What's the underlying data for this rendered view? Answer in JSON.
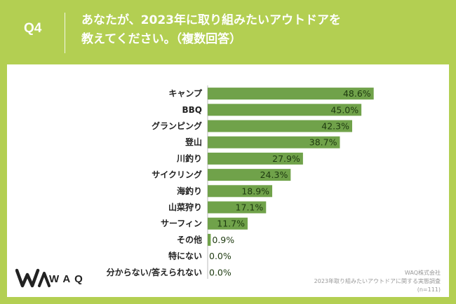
{
  "header": {
    "q_label": "Q4",
    "question_line1": "あなたが、2023年に取り組みたいアウトドアを",
    "question_line2": "教えてください。（複数回答）"
  },
  "chart_data": {
    "type": "bar",
    "orientation": "horizontal",
    "categories": [
      "キャンプ",
      "BBQ",
      "グランピング",
      "登山",
      "川釣り",
      "サイクリング",
      "海釣り",
      "山菜狩り",
      "サーフィン",
      "その他",
      "特にない",
      "分からない/答えられない"
    ],
    "values": [
      48.6,
      45.0,
      42.3,
      38.7,
      27.9,
      24.3,
      18.9,
      17.1,
      11.7,
      0.9,
      0.0,
      0.0
    ],
    "value_labels": [
      "48.6%",
      "45.0%",
      "42.3%",
      "38.7%",
      "27.9%",
      "24.3%",
      "18.9%",
      "17.1%",
      "11.7%",
      "0.9%",
      "0.0%",
      "0.0%"
    ],
    "unit": "%",
    "xlim": [
      0,
      55
    ],
    "bar_color": "#70a24a",
    "grid": false
  },
  "logo": {
    "text": "WAQ"
  },
  "source": {
    "company": "WAQ株式会社",
    "survey": "2023年取り組みたいアウトドアに関する実態調査",
    "n": "(n=111)"
  },
  "colors": {
    "background": "#b3cf52",
    "bar": "#70a24a",
    "panel": "#ffffff"
  }
}
